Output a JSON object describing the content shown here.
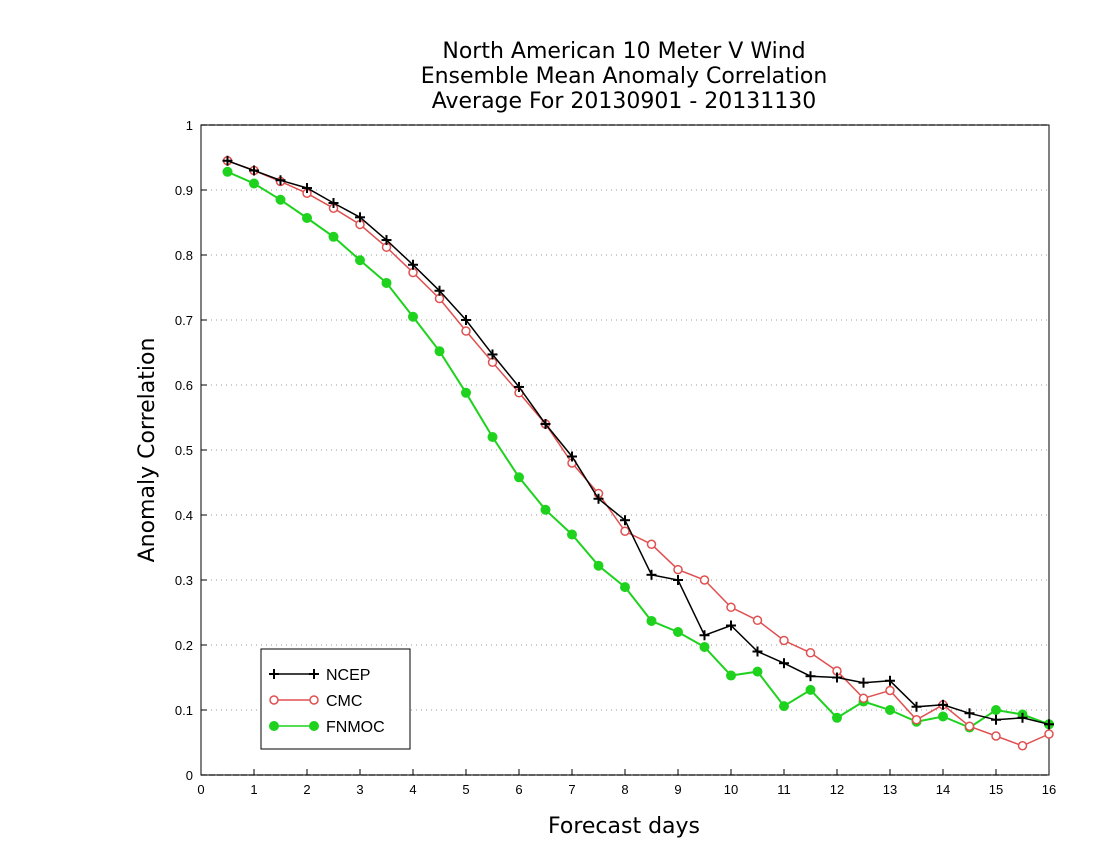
{
  "chart_data": {
    "type": "line",
    "title": [
      "North American 10 Meter V Wind",
      "Ensemble Mean Anomaly Correlation",
      "Average For 20130901 - 20131130"
    ],
    "xlabel": "Forecast days",
    "ylabel": "Anomaly Correlation",
    "xlim": [
      0,
      16
    ],
    "ylim": [
      0,
      1
    ],
    "xticks": [
      "0",
      "1",
      "2",
      "3",
      "4",
      "5",
      "6",
      "7",
      "8",
      "9",
      "10",
      "11",
      "12",
      "13",
      "14",
      "15",
      "16"
    ],
    "yticks": [
      "0",
      "0.1",
      "0.2",
      "0.3",
      "0.4",
      "0.5",
      "0.6",
      "0.7",
      "0.8",
      "0.9",
      "1"
    ],
    "grid": "horizontal dotted",
    "legend_position": "bottom-left",
    "x": [
      0.5,
      1,
      1.5,
      2,
      2.5,
      3,
      3.5,
      4,
      4.5,
      5,
      5.5,
      6,
      6.5,
      7,
      7.5,
      8,
      8.5,
      9,
      9.5,
      10,
      10.5,
      11,
      11.5,
      12,
      12.5,
      13,
      13.5,
      14,
      14.5,
      15,
      15.5,
      16
    ],
    "series": [
      {
        "name": "NCEP",
        "color": "#000000",
        "marker": "plus",
        "values": [
          0.945,
          0.93,
          0.915,
          0.903,
          0.88,
          0.858,
          0.823,
          0.785,
          0.745,
          0.7,
          0.647,
          0.597,
          0.54,
          0.49,
          0.425,
          0.392,
          0.308,
          0.3,
          0.215,
          0.23,
          0.19,
          0.172,
          0.152,
          0.15,
          0.142,
          0.145,
          0.105,
          0.108,
          0.095,
          0.085,
          0.088,
          0.078
        ]
      },
      {
        "name": "CMC",
        "color": "#e05050",
        "marker": "open-circle",
        "values": [
          0.945,
          0.93,
          0.913,
          0.895,
          0.872,
          0.847,
          0.812,
          0.773,
          0.733,
          0.683,
          0.635,
          0.588,
          0.54,
          0.48,
          0.433,
          0.375,
          0.355,
          0.316,
          0.3,
          0.258,
          0.238,
          0.207,
          0.188,
          0.16,
          0.118,
          0.13,
          0.085,
          0.108,
          0.075,
          0.06,
          0.045,
          0.063
        ]
      },
      {
        "name": "FNMOC",
        "color": "#1ed21e",
        "marker": "filled-circle",
        "values": [
          0.928,
          0.91,
          0.885,
          0.857,
          0.828,
          0.792,
          0.757,
          0.705,
          0.652,
          0.588,
          0.52,
          0.458,
          0.408,
          0.37,
          0.322,
          0.289,
          0.237,
          0.22,
          0.197,
          0.153,
          0.159,
          0.106,
          0.131,
          0.088,
          0.113,
          0.1,
          0.082,
          0.09,
          0.073,
          0.1,
          0.093,
          0.078
        ]
      }
    ]
  }
}
